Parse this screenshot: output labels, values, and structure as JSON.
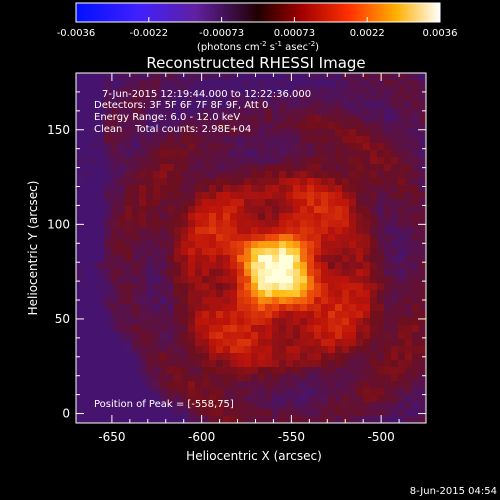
{
  "colorbar": {
    "ticks": [
      "-0.0036",
      "-0.0022",
      "-0.00073",
      "0.00073",
      "0.0022",
      "0.0036"
    ],
    "units_main": "(photons cm",
    "units_sup1": "-2",
    "units_mid": " s",
    "units_sup2": "-1",
    "units_end": " asec",
    "units_sup3": "-2",
    "units_close": ")"
  },
  "plot": {
    "title": "Reconstructed RHESSI Image",
    "info_lines": [
      "7-Jun-2015 12:19:44.000 to 12:22:36.000",
      "Detectors: 3F 5F 6F 7F 8F 9F, Att 0",
      "Energy Range: 6.0 - 12.0 keV",
      "Clean    Total counts: 2.98E+04"
    ],
    "peak_label": "Position of Peak = [-558,75]",
    "timestamp": "8-Jun-2015 04:54"
  },
  "chart_data": {
    "type": "heatmap",
    "title": "Reconstructed RHESSI Image",
    "xlabel": "Heliocentric X (arcsec)",
    "ylabel": "Heliocentric Y (arcsec)",
    "xlim": [
      -670,
      -475
    ],
    "ylim": [
      -5,
      180
    ],
    "x_ticks": [
      -650,
      -600,
      -550,
      -500
    ],
    "y_ticks": [
      0,
      50,
      100,
      150
    ],
    "x_tick_labels": [
      "-650",
      "-600",
      "-550",
      "-500"
    ],
    "y_tick_labels": [
      "0",
      "50",
      "100",
      "150"
    ],
    "colorbar_range": [
      -0.0036,
      0.0036
    ],
    "colormap": [
      "#0000ff",
      "#8000ff",
      "#000000",
      "#8b0000",
      "#ff4500",
      "#ffd000",
      "#ffffff"
    ],
    "peak": [
      -558,
      75
    ],
    "peak_value": 0.0036
  }
}
